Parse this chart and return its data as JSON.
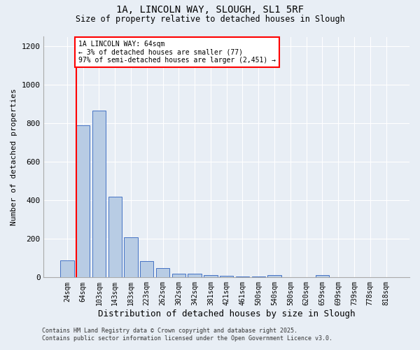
{
  "title_line1": "1A, LINCOLN WAY, SLOUGH, SL1 5RF",
  "title_line2": "Size of property relative to detached houses in Slough",
  "xlabel": "Distribution of detached houses by size in Slough",
  "ylabel": "Number of detached properties",
  "categories": [
    "24sqm",
    "64sqm",
    "103sqm",
    "143sqm",
    "183sqm",
    "223sqm",
    "262sqm",
    "302sqm",
    "342sqm",
    "381sqm",
    "421sqm",
    "461sqm",
    "500sqm",
    "540sqm",
    "580sqm",
    "620sqm",
    "659sqm",
    "699sqm",
    "739sqm",
    "778sqm",
    "818sqm"
  ],
  "values": [
    90,
    790,
    865,
    420,
    210,
    85,
    50,
    20,
    20,
    12,
    8,
    5,
    5,
    12,
    3,
    3,
    12,
    3,
    3,
    3,
    3
  ],
  "bar_color": "#b8cce4",
  "bar_edge_color": "#4472c4",
  "highlight_index": 1,
  "highlight_line_color": "#ff0000",
  "annotation_text": "1A LINCOLN WAY: 64sqm\n← 3% of detached houses are smaller (77)\n97% of semi-detached houses are larger (2,451) →",
  "annotation_box_color": "#ffffff",
  "annotation_box_edge_color": "#ff0000",
  "ylim": [
    0,
    1250
  ],
  "yticks": [
    0,
    200,
    400,
    600,
    800,
    1000,
    1200
  ],
  "bg_color": "#e8eef5",
  "plot_bg_color": "#e8eef5",
  "grid_color": "#ffffff",
  "footer_line1": "Contains HM Land Registry data © Crown copyright and database right 2025.",
  "footer_line2": "Contains public sector information licensed under the Open Government Licence v3.0."
}
